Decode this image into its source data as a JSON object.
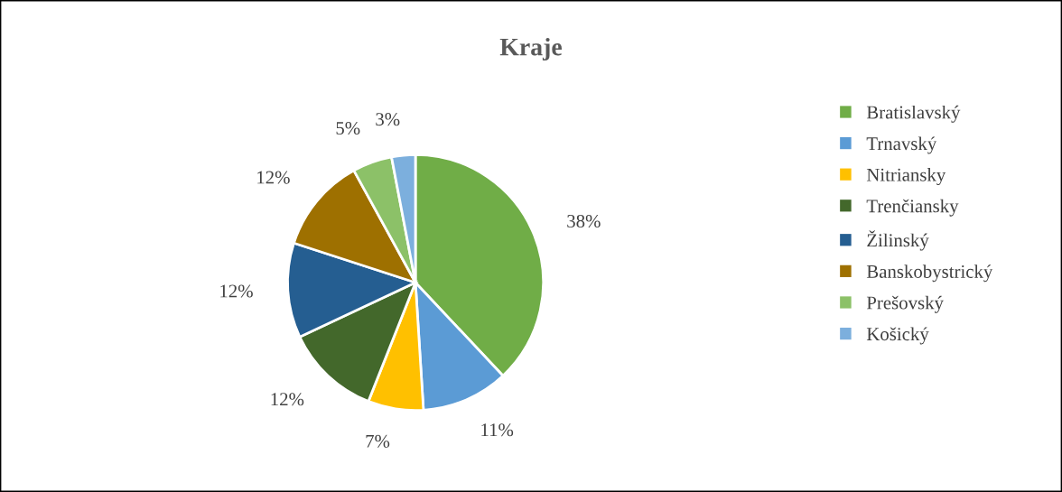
{
  "chart_data": {
    "type": "pie",
    "title": "Kraje",
    "categories": [
      "Bratislavský",
      "Trnavský",
      "Nitriansky",
      "Trenčiansky",
      "Žilinský",
      "Banskobystrický",
      "Prešovský",
      "Košický"
    ],
    "values": [
      38,
      11,
      7,
      12,
      12,
      12,
      5,
      3
    ],
    "colors": [
      "#70ad47",
      "#5b9bd5",
      "#ffc000",
      "#43682b",
      "#255e91",
      "#9e7000",
      "#8cc168",
      "#7cafdd"
    ],
    "value_labels": [
      "38%",
      "11%",
      "7%",
      "12%",
      "12%",
      "12%",
      "5%",
      "3%"
    ],
    "legend": "right"
  }
}
